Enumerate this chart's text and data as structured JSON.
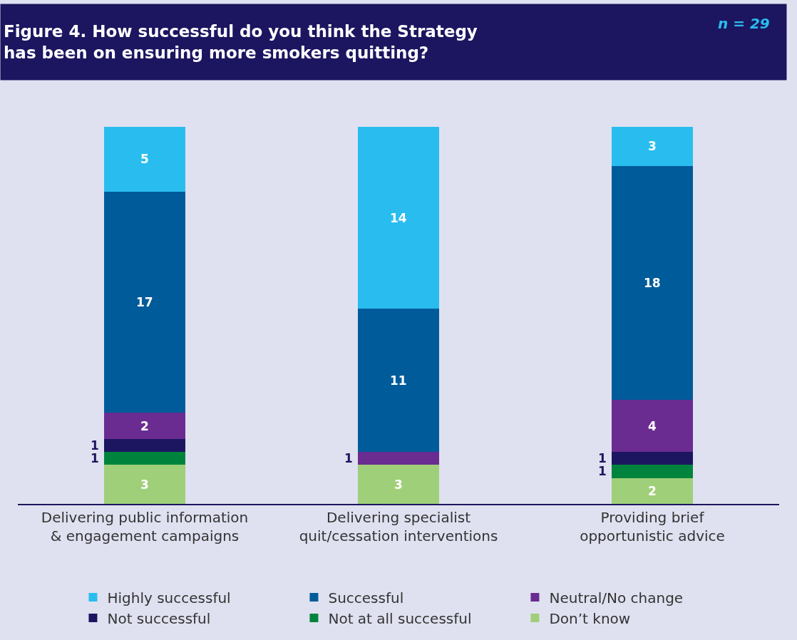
{
  "chart_data": {
    "type": "bar",
    "stacked": true,
    "data_labels": true,
    "legend": "bottom",
    "grid": false,
    "title": "Figure 4. How successful do you think the Strategy has been on ensuring more smokers quitting?",
    "annotations": [
      "n = 29"
    ],
    "categories": [
      "Delivering public information & engagement campaigns",
      "Delivering specialist quit/cessation interventions",
      "Providing brief opportunistic advice"
    ],
    "series": [
      {
        "name": "Don’t know",
        "color": "#a0cf7a",
        "values": [
          3,
          3,
          2
        ]
      },
      {
        "name": "Not at all successful",
        "color": "#00843d",
        "values": [
          1,
          null,
          1
        ]
      },
      {
        "name": "Not successful",
        "color": "#1c1660",
        "values": [
          1,
          null,
          1
        ]
      },
      {
        "name": "Neutral/No change",
        "color": "#6a2c91",
        "values": [
          2,
          1,
          4
        ]
      },
      {
        "name": "Successful",
        "color": "#005b9a",
        "values": [
          17,
          11,
          18
        ]
      },
      {
        "name": "Highly successful",
        "color": "#29bdef",
        "values": [
          5,
          14,
          3
        ]
      }
    ]
  }
}
